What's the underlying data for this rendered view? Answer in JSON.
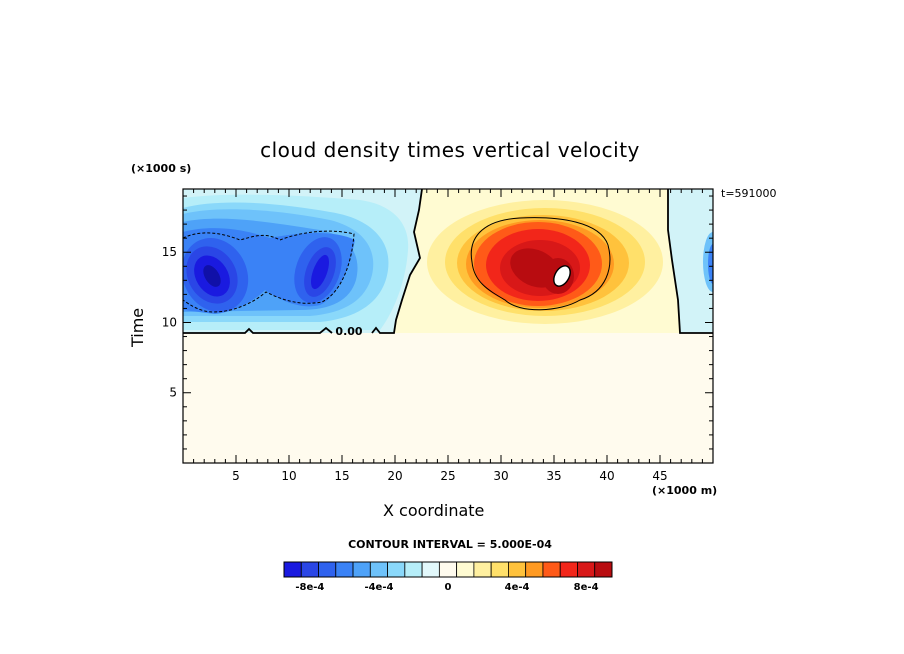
{
  "chart_data": {
    "type": "heatmap",
    "title": "cloud density times vertical velocity",
    "xlabel": "X coordinate",
    "ylabel": "Time",
    "x_unit": "(×1000 m)",
    "y_unit": "(×1000 s)",
    "timestamp": "t=591000",
    "xlim": [
      0,
      50
    ],
    "ylim": [
      0,
      19.5
    ],
    "x_ticks": [
      5,
      10,
      15,
      20,
      25,
      30,
      35,
      40,
      45
    ],
    "y_ticks": [
      5,
      10,
      15
    ],
    "grid": false,
    "contour_interval": "CONTOUR INTERVAL = 5.000E-04",
    "zero_contour_label": "0.00",
    "colorbar": {
      "colors": [
        "#1a1ae0",
        "#2a46e6",
        "#2f62ee",
        "#3a82f6",
        "#4ea2f8",
        "#6ec2fa",
        "#8ad8fa",
        "#b6eef9",
        "#e2f8fb",
        "#fffbee",
        "#fffbd2",
        "#fff0a0",
        "#ffe06a",
        "#ffc23c",
        "#ff9a22",
        "#ff5a18",
        "#f2261a",
        "#d81818",
        "#b80c10"
      ],
      "tick_labels": [
        "-8e-4",
        "-4e-4",
        "0",
        "4e-4",
        "8e-4"
      ],
      "tick_values": [
        -0.0008,
        -0.0004,
        0,
        0.0004,
        0.0008
      ],
      "min": -0.00095,
      "max": 0.00095
    },
    "features": [
      {
        "name": "updraft-core",
        "x_center": 35.5,
        "y_center": 13.5,
        "peak": 0.00095,
        "note": "white patch exceeds colorbar"
      },
      {
        "name": "updraft",
        "x_center": 33,
        "y_center": 14.8,
        "peak": 0.0009
      },
      {
        "name": "downdraft-left",
        "x_center": 3.5,
        "y_center": 13.5,
        "peak": -0.00085
      },
      {
        "name": "downdraft-mid",
        "x_center": 12.5,
        "y_center": 13.5,
        "peak": -0.0008
      },
      {
        "name": "downdraft-right-edge",
        "x_center": 50,
        "y_center": 14.5,
        "peak": -0.0004
      }
    ],
    "background_value": 0
  }
}
